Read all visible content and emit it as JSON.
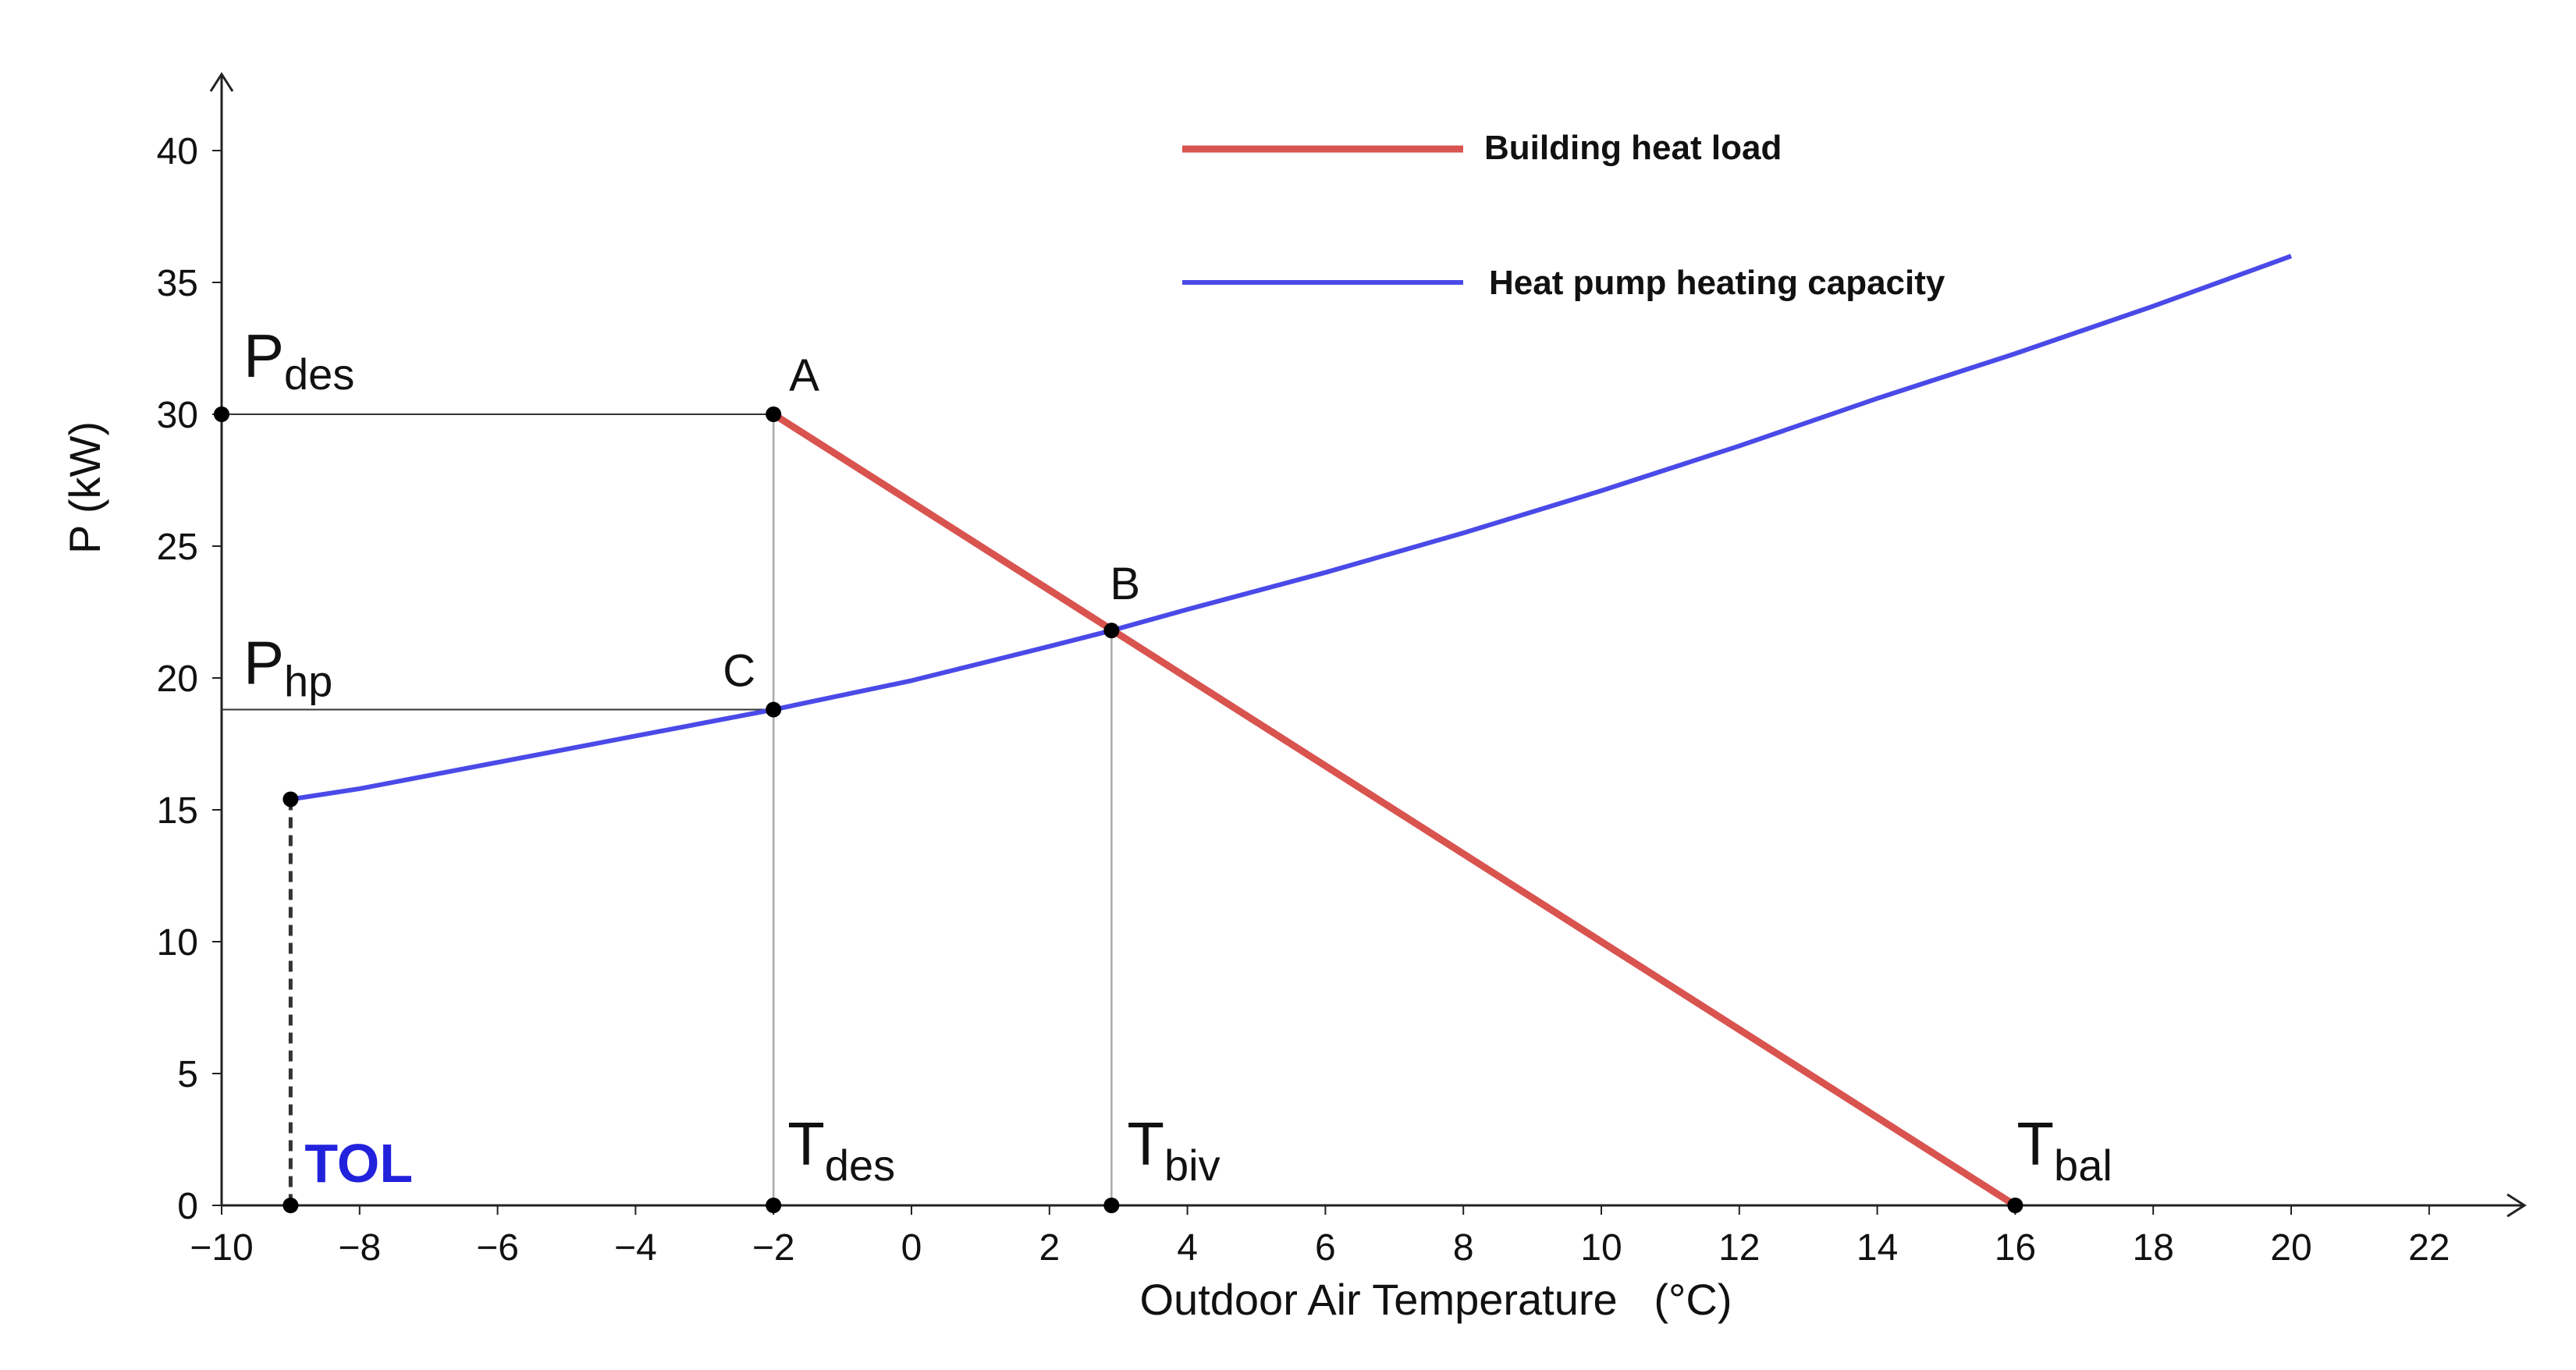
{
  "chart_data": {
    "type": "line",
    "title": "",
    "xlabel": "Outdoor Air Temperature   (°C)",
    "ylabel": "P (kW)",
    "xlim": [
      -10,
      23.5
    ],
    "ylim": [
      0,
      43
    ],
    "x_ticks": [
      -10,
      -8,
      -6,
      -4,
      -2,
      0,
      2,
      4,
      6,
      8,
      10,
      12,
      14,
      16,
      18,
      20,
      22
    ],
    "x_tick_labels": [
      "−10",
      "−8",
      "−6",
      "−4",
      "−2",
      "0",
      "2",
      "4",
      "6",
      "8",
      "10",
      "12",
      "14",
      "16",
      "18",
      "20",
      "22"
    ],
    "y_ticks": [
      0,
      5,
      10,
      15,
      20,
      25,
      30,
      35,
      40
    ],
    "y_tick_labels": [
      "0",
      "5",
      "10",
      "15",
      "20",
      "25",
      "30",
      "35",
      "40"
    ],
    "grid": false,
    "legend_position": "top-center",
    "colors": {
      "load": "#d9534f",
      "hp": "#4a4ae8",
      "guide": "#333333",
      "guide_light": "#aaaaaa",
      "tol": "#2222dd"
    },
    "series": [
      {
        "name": "Building heat load",
        "key": "load",
        "x": [
          -2,
          16
        ],
        "y": [
          30,
          0
        ]
      },
      {
        "name": "Heat pump heating capacity",
        "key": "hp",
        "x": [
          -9,
          -8,
          -6,
          -4,
          -2,
          0,
          2,
          2.9,
          4,
          6,
          8,
          10,
          12,
          14,
          16,
          18,
          20
        ],
        "y": [
          15.4,
          15.8,
          16.8,
          17.8,
          18.8,
          19.9,
          21.2,
          21.8,
          22.6,
          24.0,
          25.5,
          27.1,
          28.8,
          30.6,
          32.3,
          34.1,
          36.0
        ]
      }
    ],
    "points": [
      {
        "key": "A",
        "label": "A",
        "x": -2,
        "y": 30
      },
      {
        "key": "B",
        "label": "B",
        "x": 2.9,
        "y": 21.8
      },
      {
        "key": "C",
        "label": "C",
        "x": -2,
        "y": 18.8
      },
      {
        "key": "Pdes",
        "x": -10,
        "y": 30
      },
      {
        "key": "TOLtop",
        "x": -9,
        "y": 15.4
      },
      {
        "key": "TOL",
        "x": -9,
        "y": 0
      },
      {
        "key": "Tdes",
        "x": -2,
        "y": 0
      },
      {
        "key": "Tbiv",
        "x": 2.9,
        "y": 0
      },
      {
        "key": "Tbal",
        "x": 16,
        "y": 0
      }
    ],
    "annotations": {
      "P_main": "P",
      "des_sub": "des",
      "hp_sub": "hp",
      "T_main": "T",
      "biv_sub": "biv",
      "bal_sub": "bal",
      "TOL": "TOL",
      "A": "A",
      "B": "B",
      "C": "C"
    }
  }
}
